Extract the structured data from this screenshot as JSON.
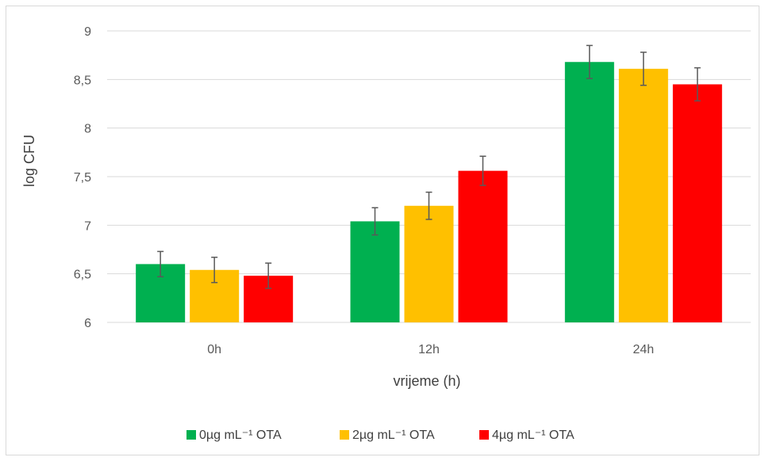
{
  "chart_data": {
    "type": "bar",
    "title": "",
    "xlabel": "vrijeme (h)",
    "ylabel": "log CFU",
    "categories": [
      "0h",
      "12h",
      "24h"
    ],
    "ylim": [
      6,
      9
    ],
    "yticks": [
      "6",
      "6,5",
      "7",
      "7,5",
      "8",
      "8,5",
      "9"
    ],
    "ytick_values": [
      6,
      6.5,
      7,
      7.5,
      8,
      8.5,
      9
    ],
    "grid": true,
    "legend_position": "bottom",
    "series": [
      {
        "name": "0µg mL⁻¹ OTA",
        "color": "#00b050",
        "values": [
          6.6,
          7.04,
          8.68
        ],
        "errors": [
          0.13,
          0.14,
          0.17
        ]
      },
      {
        "name": "2µg mL⁻¹ OTA",
        "color": "#ffc000",
        "values": [
          6.54,
          7.2,
          8.61
        ],
        "errors": [
          0.13,
          0.14,
          0.17
        ]
      },
      {
        "name": "4µg mL⁻¹ OTA",
        "color": "#ff0000",
        "values": [
          6.48,
          7.56,
          8.45
        ],
        "errors": [
          0.13,
          0.15,
          0.17
        ]
      }
    ]
  }
}
